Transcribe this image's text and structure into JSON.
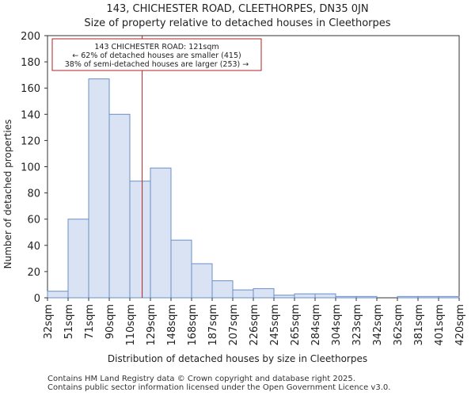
{
  "chart_data": {
    "type": "bar",
    "title": "143, CHICHESTER ROAD, CLEETHORPES, DN35 0JN",
    "subtitle": "Size of property relative to detached houses in Cleethorpes",
    "xlabel": "Distribution of detached houses by size in Cleethorpes",
    "ylabel": "Number of detached properties",
    "ylim": [
      0,
      200
    ],
    "yticks": [
      0,
      20,
      40,
      60,
      80,
      100,
      120,
      140,
      160,
      180,
      200
    ],
    "bin_edges": [
      "32sqm",
      "51sqm",
      "71sqm",
      "90sqm",
      "110sqm",
      "129sqm",
      "148sqm",
      "168sqm",
      "187sqm",
      "207sqm",
      "226sqm",
      "245sqm",
      "265sqm",
      "284sqm",
      "304sqm",
      "323sqm",
      "342sqm",
      "362sqm",
      "381sqm",
      "401sqm",
      "420sqm"
    ],
    "values": [
      5,
      60,
      167,
      140,
      89,
      99,
      44,
      26,
      13,
      6,
      7,
      2,
      3,
      3,
      1,
      1,
      0,
      1,
      1,
      1
    ],
    "bar_color": "#dae3f4",
    "bar_edge_color": "#6a8fc8",
    "marker": {
      "value_index": 4.6,
      "color": "#b22222",
      "annotation": [
        "143 CHICHESTER ROAD: 121sqm",
        "← 62% of detached houses are smaller (415)",
        "38% of semi-detached houses are larger (253) →"
      ]
    }
  },
  "footer": [
    "Contains HM Land Registry data © Crown copyright and database right 2025.",
    "Contains public sector information licensed under the Open Government Licence v3.0."
  ]
}
